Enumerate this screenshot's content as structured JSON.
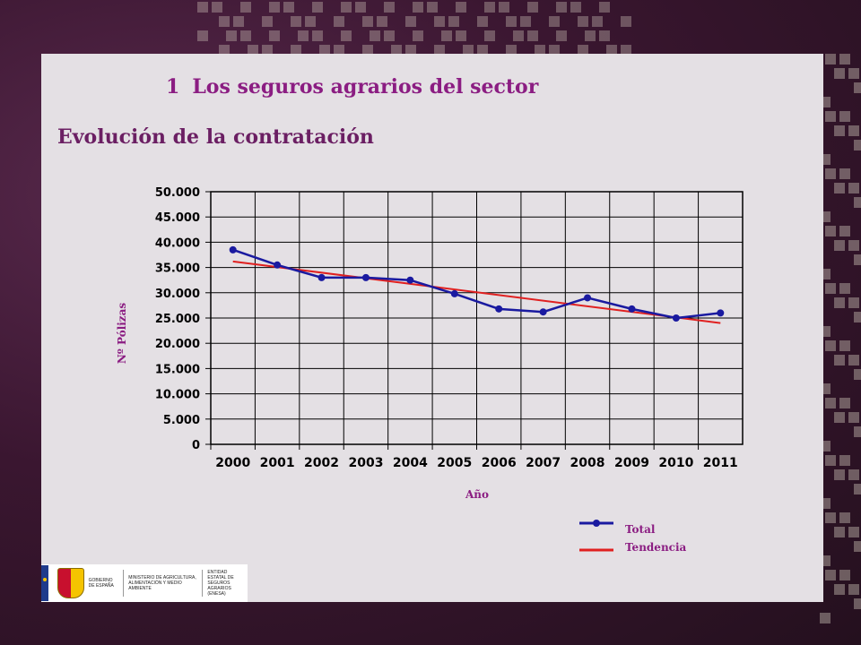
{
  "header": {
    "section_number": "1",
    "section_title": "Los seguros agrarios del sector",
    "subtitle": "Evolución de la contratación"
  },
  "colors": {
    "title": "#8b1d82",
    "axis_text": "#8b1d82",
    "total_series": "#1a1aa0",
    "trend_series": "#e02020"
  },
  "logos": {
    "gobierno": "GOBIERNO DE ESPAÑA",
    "ministerio": "MINISTERIO DE AGRICULTURA, ALIMENTACIÓN Y MEDIO AMBIENTE",
    "entidad": "ENTIDAD ESTATAL DE SEGUROS AGRARIOS (ENESA)"
  },
  "chart_data": {
    "type": "line",
    "title": "",
    "xlabel": "Año",
    "ylabel": "Nº Pólizas",
    "categories": [
      "2000",
      "2001",
      "2002",
      "2003",
      "2004",
      "2005",
      "2006",
      "2007",
      "2008",
      "2009",
      "2010",
      "2011"
    ],
    "yticks": [
      "0",
      "5.000",
      "10.000",
      "15.000",
      "20.000",
      "25.000",
      "30.000",
      "35.000",
      "40.000",
      "45.000",
      "50.000"
    ],
    "ylim": [
      0,
      50000
    ],
    "grid": true,
    "legend_position": "bottom-right",
    "series": [
      {
        "name": "Total",
        "values": [
          38500,
          35500,
          33000,
          33000,
          32500,
          29800,
          26800,
          26200,
          29000,
          26800,
          25000,
          26000
        ],
        "markers": true
      },
      {
        "name": "Tendencia",
        "values": [
          36200,
          null,
          null,
          null,
          null,
          null,
          null,
          null,
          null,
          null,
          null,
          24000
        ],
        "markers": false
      }
    ]
  }
}
